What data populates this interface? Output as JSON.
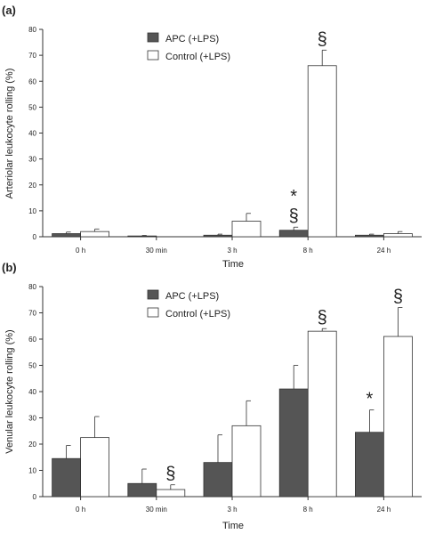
{
  "colors": {
    "apc": "#555555",
    "control": "#ffffff",
    "axis": "#333333"
  },
  "chart_data": [
    {
      "panel": "(a)",
      "type": "bar",
      "categories": [
        "0 h",
        "30 min",
        "3 h",
        "8 h",
        "24 h"
      ],
      "xlabel": "Time",
      "ylabel": "Arteriolar leukocyte rolling (%)",
      "ylim": [
        0,
        80
      ],
      "yticks": [
        0,
        10,
        20,
        30,
        40,
        50,
        60,
        70,
        80
      ],
      "legend": "top-left",
      "grid": false,
      "series": [
        {
          "name": "APC (+LPS)",
          "fill": "apc",
          "values": [
            1.2,
            0.3,
            0.6,
            2.5,
            0.6
          ],
          "errors": [
            0.6,
            0.2,
            0.4,
            1.2,
            0.4
          ]
        },
        {
          "name": "Control (+LPS)",
          "fill": "control",
          "values": [
            2.0,
            0,
            6.0,
            66.0,
            1.2
          ],
          "errors": [
            1.0,
            0,
            3.0,
            6.0,
            0.8
          ]
        }
      ],
      "annotations": [
        {
          "text": "*",
          "category": 3,
          "series": 0,
          "level": 1
        },
        {
          "text": "§",
          "category": 3,
          "series": 0,
          "level": 0
        },
        {
          "text": "§",
          "category": 3,
          "series": 1,
          "level": 0
        }
      ]
    },
    {
      "panel": "(b)",
      "type": "bar",
      "categories": [
        "0 h",
        "30 min",
        "3 h",
        "8 h",
        "24 h"
      ],
      "xlabel": "Time",
      "ylabel": "Venular leukocyte rolling (%)",
      "ylim": [
        0,
        80
      ],
      "yticks": [
        0,
        10,
        20,
        30,
        40,
        50,
        60,
        70,
        80
      ],
      "legend": "top-left",
      "grid": false,
      "series": [
        {
          "name": "APC (+LPS)",
          "fill": "apc",
          "values": [
            14.5,
            5.0,
            13.0,
            41.0,
            24.5
          ],
          "errors": [
            5.0,
            5.5,
            10.5,
            9.0,
            8.5
          ]
        },
        {
          "name": "Control (+LPS)",
          "fill": "control",
          "values": [
            22.5,
            2.7,
            27.0,
            63.0,
            61.0
          ],
          "errors": [
            8.0,
            1.8,
            9.5,
            1.0,
            11.0
          ]
        }
      ],
      "annotations": [
        {
          "text": "§",
          "category": 1,
          "series": 1,
          "level": 0
        },
        {
          "text": "§",
          "category": 3,
          "series": 1,
          "level": 0
        },
        {
          "text": "*",
          "category": 4,
          "series": 0,
          "level": 0
        },
        {
          "text": "§",
          "category": 4,
          "series": 1,
          "level": 0
        }
      ]
    }
  ]
}
